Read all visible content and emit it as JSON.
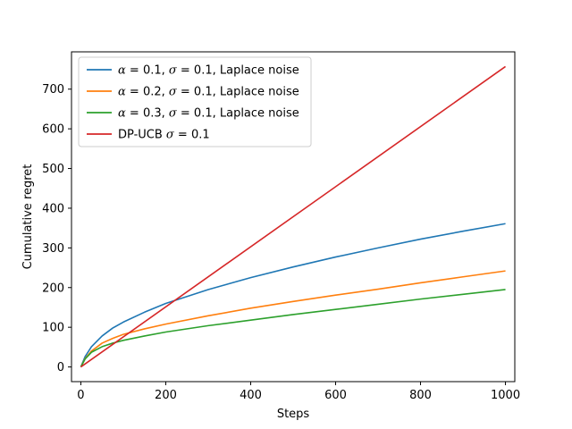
{
  "chart_data": {
    "type": "line",
    "title": "",
    "xlabel": "Steps",
    "ylabel": "Cumulative regret",
    "xlim": [
      -22,
      1022
    ],
    "ylim": [
      -37,
      794
    ],
    "xticks": [
      0,
      200,
      400,
      600,
      800,
      1000
    ],
    "yticks": [
      0,
      100,
      200,
      300,
      400,
      500,
      600,
      700
    ],
    "grid": false,
    "legend_position": "top-left",
    "series": [
      {
        "name": "α = 0.1, σ = 0.1, Laplace noise",
        "legend_parts": [
          [
            "α",
            true
          ],
          [
            " = 0.1, ",
            false
          ],
          [
            "σ",
            true
          ],
          [
            " = 0.1, Laplace noise",
            false
          ]
        ],
        "color": "#1f77b4",
        "x": [
          0,
          10,
          25,
          50,
          75,
          100,
          150,
          200,
          300,
          400,
          500,
          600,
          700,
          800,
          900,
          1000
        ],
        "y": [
          0,
          26,
          51,
          78,
          98,
          113,
          138,
          160,
          195,
          225,
          252,
          277,
          300,
          322,
          342,
          361
        ]
      },
      {
        "name": "α = 0.2, σ = 0.1, Laplace noise",
        "legend_parts": [
          [
            "α",
            true
          ],
          [
            " = 0.2, ",
            false
          ],
          [
            "σ",
            true
          ],
          [
            " = 0.1, Laplace noise",
            false
          ]
        ],
        "color": "#ff7f0e",
        "x": [
          0,
          10,
          25,
          50,
          75,
          100,
          150,
          200,
          300,
          400,
          500,
          600,
          700,
          800,
          900,
          1000
        ],
        "y": [
          0,
          21,
          40,
          60,
          72,
          82,
          96,
          108,
          129,
          148,
          165,
          181,
          196,
          212,
          227,
          242
        ]
      },
      {
        "name": "α = 0.3, σ = 0.1, Laplace noise",
        "legend_parts": [
          [
            "α",
            true
          ],
          [
            " = 0.3, ",
            false
          ],
          [
            "σ",
            true
          ],
          [
            " = 0.1, Laplace noise",
            false
          ]
        ],
        "color": "#2ca02c",
        "x": [
          0,
          10,
          25,
          50,
          75,
          100,
          150,
          200,
          300,
          400,
          500,
          600,
          700,
          800,
          900,
          1000
        ],
        "y": [
          0,
          20,
          37,
          51,
          60,
          67,
          78,
          88,
          104,
          118,
          132,
          145,
          158,
          171,
          183,
          195
        ]
      },
      {
        "name": "DP-UCB σ = 0.1",
        "legend_parts": [
          [
            "DP-UCB ",
            false
          ],
          [
            "σ",
            true
          ],
          [
            " = 0.1",
            false
          ]
        ],
        "color": "#d62728",
        "x": [
          0,
          1000
        ],
        "y": [
          0,
          757
        ]
      }
    ]
  }
}
